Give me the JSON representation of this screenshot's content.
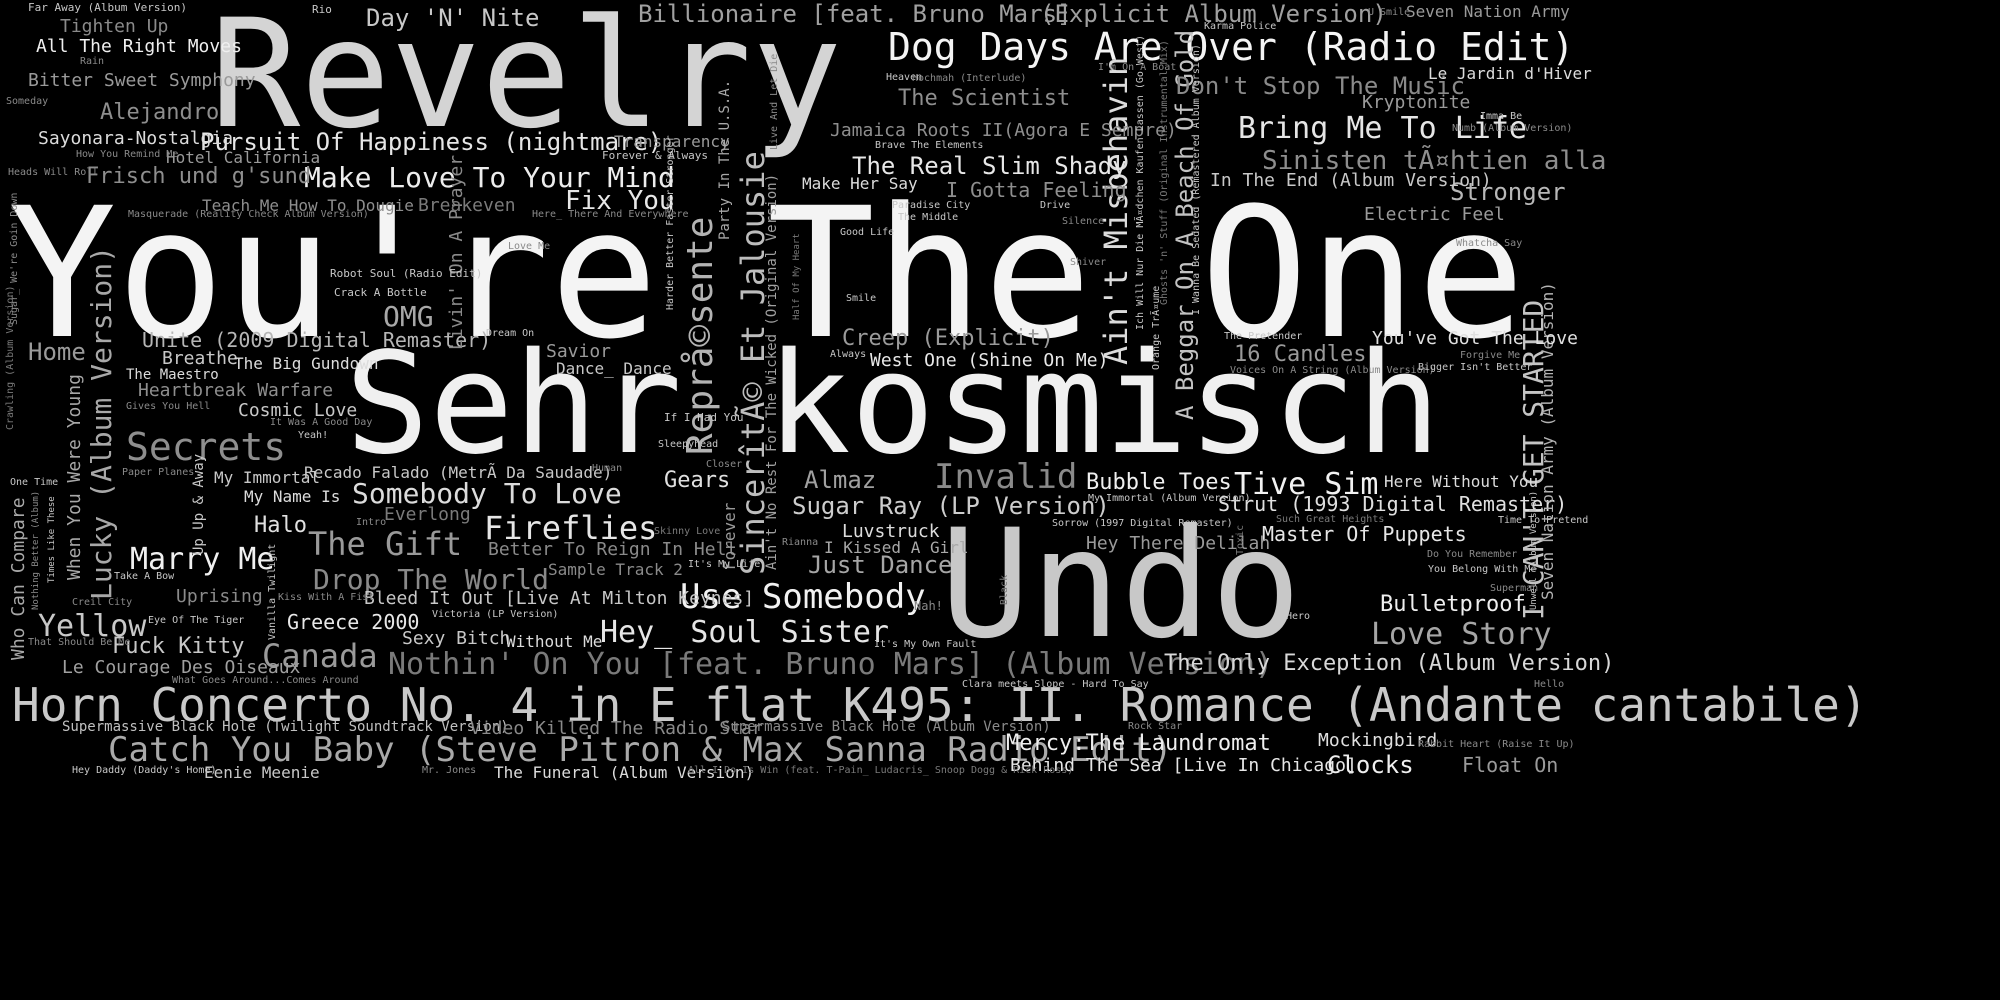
{
  "background": "#000000",
  "words": [
    {
      "text": "You're The One",
      "shade": "#f4f4f4"
    },
    {
      "text": "Sehr kosmisch",
      "shade": "#f0f0f0"
    },
    {
      "text": "Revelry",
      "shade": "#d4d4d4"
    },
    {
      "text": "Undo",
      "shade": "#c8c8c8"
    },
    {
      "text": "Horn Concerto No. 4 in E flat K495: II. Romance (Andante cantabile)",
      "shade": "#c9c9c9"
    },
    {
      "text": "Dog Days Are Over (Radio Edit)",
      "shade": "#f4f4f4"
    },
    {
      "text": "Catch You Baby (Steve Pitron & Max Sanna Radio Edit)",
      "shade": "#a9a9a9"
    },
    {
      "text": "Reprå©sente",
      "shade": "#b3b3b3"
    },
    {
      "text": "SincerîtÃ© Et Jalousie",
      "shade": "#bdbdbd"
    },
    {
      "text": "Ain't Misbehavin",
      "shade": "#dcdcdc"
    },
    {
      "text": "Nothin' On You [feat. Bruno Mars] (Album Version)",
      "shade": "#7a7a7a"
    },
    {
      "text": "Billionaire [feat. Bruno Mars]",
      "shade": "#a0a0a0"
    },
    {
      "text": "(Explicit Album Version)",
      "shade": "#a0a0a0"
    },
    {
      "text": "Day 'N' Nite",
      "shade": "#c8c8c8"
    },
    {
      "text": "Bring Me To Life",
      "shade": "#e6e6e6"
    },
    {
      "text": "Sinisten tÃ¤htien alla",
      "shade": "#8e8e8e"
    },
    {
      "text": "Pursuit Of Happiness (nightmare)",
      "shade": "#e6e6e6"
    },
    {
      "text": "Make Love To Your Mind",
      "shade": "#ededed"
    },
    {
      "text": "Secrets",
      "shade": "#8e8e8e"
    },
    {
      "text": "Somebody To Love",
      "shade": "#dcdcdc"
    },
    {
      "text": "Fireflies",
      "shade": "#e6e6e6"
    },
    {
      "text": "Use Somebody",
      "shade": "#f2f2f2"
    },
    {
      "text": "Hey_ Soul Sister",
      "shade": "#e6e6e6"
    },
    {
      "text": "Canada",
      "shade": "#9a9a9a"
    },
    {
      "text": "The Gift",
      "shade": "#9a9a9a"
    },
    {
      "text": "Invalid",
      "shade": "#8a8a8a"
    },
    {
      "text": "Tive Sim",
      "shade": "#f2f2f2"
    },
    {
      "text": "Lucky (Album Version)",
      "shade": "#a8a8a8"
    },
    {
      "text": "A Beggar On A Beach Of Gold",
      "shade": "#c2c2c2"
    },
    {
      "text": "I CAN'T GET STARTED",
      "shade": "#c4c4c4"
    },
    {
      "text": "Marry Me",
      "shade": "#f0f0f0"
    },
    {
      "text": "Drop The World",
      "shade": "#8a8a8a"
    },
    {
      "text": "The Only Exception (Album Version)",
      "shade": "#d8d8d8"
    },
    {
      "text": "Love Story",
      "shade": "#a6a6a6"
    },
    {
      "text": "The Real Slim Shady",
      "shade": "#e8e8e8"
    },
    {
      "text": "Don't Stop The Music",
      "shade": "#8a8a8a"
    },
    {
      "text": "The Scientist",
      "shade": "#8e8e8e"
    },
    {
      "text": "Sugar Ray (LP Version)",
      "shade": "#cdcdcd"
    },
    {
      "text": "Just Dance",
      "shade": "#a6a6a6"
    },
    {
      "text": "Home",
      "shade": "#9a9a9a"
    },
    {
      "text": "Yellow",
      "shade": "#c8c8c8"
    },
    {
      "text": "Fix You",
      "shade": "#e8e8e8"
    },
    {
      "text": "OMG",
      "shade": "#a8a8a8"
    },
    {
      "text": "Gears",
      "shade": "#e0e0e0"
    },
    {
      "text": "Almaz",
      "shade": "#a0a0a0"
    },
    {
      "text": "Bubble Toes",
      "shade": "#f0f0f0"
    },
    {
      "text": "Stronger",
      "shade": "#b8b8b8"
    },
    {
      "text": "Bulletproof",
      "shade": "#efefef"
    },
    {
      "text": "16 Candles",
      "shade": "#9a9a9a"
    },
    {
      "text": "Mercy:The Laundromat",
      "shade": "#efefef"
    },
    {
      "text": "Clocks",
      "shade": "#efefef"
    },
    {
      "text": "Float On",
      "shade": "#9a9a9a"
    },
    {
      "text": "Master Of Puppets",
      "shade": "#e6e6e6"
    },
    {
      "text": "Creep (Explicit)",
      "shade": "#9a9a9a"
    },
    {
      "text": "I Gotta Feeling",
      "shade": "#8e8e8e"
    },
    {
      "text": "Frisch und g'sund",
      "shade": "#8e8e8e"
    },
    {
      "text": "Unite (2009 Digital Remaster)",
      "shade": "#b6b6b6"
    },
    {
      "text": "Strut (1993 Digital Remaster)",
      "shade": "#e0e0e0"
    },
    {
      "text": "Halo",
      "shade": "#e0e0e0"
    },
    {
      "text": "Greece 2000",
      "shade": "#e8e8e8"
    },
    {
      "text": "Fuck Kitty",
      "shade": "#c8c8c8"
    },
    {
      "text": "Seven Nation Army (Album Version)",
      "shade": "#b3b3b3"
    },
    {
      "text": "You've Got The Love",
      "shade": "#e0e0e0"
    },
    {
      "text": "When You Were Young",
      "shade": "#a8a8a8"
    },
    {
      "text": "Who Can Compare",
      "shade": "#a8a8a8"
    },
    {
      "text": "In The End (Album Version)",
      "shade": "#c8c8c8"
    },
    {
      "text": "West One (Shine On Me)",
      "shade": "#e8e8e8"
    },
    {
      "text": "Uprising",
      "shade": "#8a8a8a"
    },
    {
      "text": "Heartbreak Warfare",
      "shade": "#8e8e8e"
    },
    {
      "text": "Cosmic Love",
      "shade": "#c8c8c8"
    },
    {
      "text": "Alejandro",
      "shade": "#8e8e8e"
    },
    {
      "text": "Bitter Sweet Symphony",
      "shade": "#9a9a9a"
    },
    {
      "text": "All The Right Moves",
      "shade": "#efefef"
    },
    {
      "text": "Tighten Up",
      "shade": "#8a8a8a"
    },
    {
      "text": "Sayonara-Nostalgia",
      "shade": "#dcdcdc"
    },
    {
      "text": "Jamaica Roots II(Agora E Sempre)",
      "shade": "#8e8e8e"
    },
    {
      "text": "Livin' On A Prayer",
      "shade": "#8a8a8a"
    },
    {
      "text": "Electric Feel",
      "shade": "#9a9a9a"
    },
    {
      "text": "Kryptonite",
      "shade": "#9a9a9a"
    },
    {
      "text": "Le Jardin d'Hiver",
      "shade": "#dcdcdc"
    },
    {
      "text": "Seven Nation Army",
      "shade": "#9a9a9a"
    },
    {
      "text": "Le Courage Des Oiseaux",
      "shade": "#a0a0a0"
    },
    {
      "text": "Supermassive Black Hole (Twilight Soundtrack Version)",
      "shade": "#c0c0c0"
    },
    {
      "text": "Video Killed The Radio Star",
      "shade": "#8a8a8a"
    },
    {
      "text": "Supermassive Black Hole (Album Version)",
      "shade": "#8a8a8a"
    },
    {
      "text": "Behind The Sea [Live In Chicago]",
      "shade": "#e6e6e6"
    },
    {
      "text": "Mockingbird",
      "shade": "#e0e0e0"
    },
    {
      "text": "Bleed It Out [Live At Milton Keynes]",
      "shade": "#c8c8c8"
    },
    {
      "text": "Sexy Bitch",
      "shade": "#c8c8c8"
    },
    {
      "text": "Without Me",
      "shade": "#dcdcdc"
    },
    {
      "text": "Breathe",
      "shade": "#c8c8c8"
    },
    {
      "text": "The Maestro",
      "shade": "#dcdcdc"
    },
    {
      "text": "The Big Gundown",
      "shade": "#dcdcdc"
    },
    {
      "text": "Savior",
      "shade": "#9a9a9a"
    },
    {
      "text": "Dance_ Dance",
      "shade": "#c8c8c8"
    },
    {
      "text": "Better To Reign In Hell",
      "shade": "#8a8a8a"
    },
    {
      "text": "Sample Track 2",
      "shade": "#8a8a8a"
    },
    {
      "text": "Everlong",
      "shade": "#7a7a7a"
    },
    {
      "text": "Breakeven",
      "shade": "#7a7a7a"
    },
    {
      "text": "Hotel California",
      "shade": "#9a9a9a"
    },
    {
      "text": "Transparency",
      "shade": "#9a9a9a"
    },
    {
      "text": "Recado Falado (MetrÃ Da Saudade)",
      "shade": "#c8c8c8"
    },
    {
      "text": "Luvstruck",
      "shade": "#dcdcdc"
    },
    {
      "text": "I Kissed A Girl",
      "shade": "#a8a8a8"
    },
    {
      "text": "Hey There Delilah",
      "shade": "#9a9a9a"
    },
    {
      "text": "Here Without You",
      "shade": "#dcdcdc"
    },
    {
      "text": "Eenie Meenie",
      "shade": "#c8c8c8"
    },
    {
      "text": "The Funeral (Album Version)",
      "shade": "#dcdcdc"
    },
    {
      "text": "Teach Me How To Dougie",
      "shade": "#8e8e8e"
    },
    {
      "text": "My Immortal",
      "shade": "#c8c8c8"
    },
    {
      "text": "My Name Is",
      "shade": "#dcdcdc"
    },
    {
      "text": "Party In The U.S.A.",
      "shade": "#a8a8a8"
    },
    {
      "text": "Up Up & Away",
      "shade": "#c8c8c8"
    },
    {
      "text": "Forever",
      "shade": "#9a9a9a"
    },
    {
      "text": "Ain't No Rest For The Wicked (Original Version)",
      "shade": "#a0a0a0"
    },
    {
      "text": "Make Her Say",
      "shade": "#dcdcdc"
    },
    {
      "text": "Heaven",
      "shade": "#c8c8c8"
    },
    {
      "text": "Forever & Always",
      "shade": "#c8c8c8"
    },
    {
      "text": "Far Away (Album Version)",
      "shade": "#c8c8c8"
    },
    {
      "text": "Rio",
      "shade": "#c8c8c8"
    },
    {
      "text": "Rain",
      "shade": "#8a8a8a"
    },
    {
      "text": "Someday",
      "shade": "#8a8a8a"
    },
    {
      "text": "How You Remind Me",
      "shade": "#8a8a8a"
    },
    {
      "text": "Heads Will Roll",
      "shade": "#8a8a8a"
    },
    {
      "text": "Masquerade (Reality Check Album Version)",
      "shade": "#8a8a8a"
    },
    {
      "text": "Robot Soul (Radio Edit)",
      "shade": "#c8c8c8"
    },
    {
      "text": "Crack A Bottle",
      "shade": "#c8c8c8"
    },
    {
      "text": "Dream On",
      "shade": "#c8c8c8"
    },
    {
      "text": "If I Had You",
      "shade": "#c8c8c8"
    },
    {
      "text": "Sleepyhead",
      "shade": "#c8c8c8"
    },
    {
      "text": "Human",
      "shade": "#8a8a8a"
    },
    {
      "text": "Closer",
      "shade": "#8a8a8a"
    },
    {
      "text": "Skinny Love",
      "shade": "#7a7a7a"
    },
    {
      "text": "It's My Life",
      "shade": "#c8c8c8"
    },
    {
      "text": "Rianna",
      "shade": "#8a8a8a"
    },
    {
      "text": "Intro",
      "shade": "#8a8a8a"
    },
    {
      "text": "Paper Planes",
      "shade": "#8a8a8a"
    },
    {
      "text": "It Was A Good Day",
      "shade": "#8a8a8a"
    },
    {
      "text": "Yeah!",
      "shade": "#c8c8c8"
    },
    {
      "text": "Gives You Hell",
      "shade": "#8a8a8a"
    },
    {
      "text": "One Time",
      "shade": "#c8c8c8"
    },
    {
      "text": "Crawling (Album Version)",
      "shade": "#7a7a7a"
    },
    {
      "text": "Sugar_ We're Goin Down",
      "shade": "#8a8a8a"
    },
    {
      "text": "Take A Bow",
      "shade": "#c8c8c8"
    },
    {
      "text": "Creil City",
      "shade": "#8a8a8a"
    },
    {
      "text": "Eye Of The Tiger",
      "shade": "#c8c8c8"
    },
    {
      "text": "That Should Be Me",
      "shade": "#8a8a8a"
    },
    {
      "text": "What Goes Around...Comes Around",
      "shade": "#8a8a8a"
    },
    {
      "text": "Hey Daddy (Daddy's Home)",
      "shade": "#c8c8c8"
    },
    {
      "text": "Mr. Jones",
      "shade": "#8a8a8a"
    },
    {
      "text": "All I Do Is Win (feat. T-Pain_ Ludacris_ Snoop Dogg & Rick Ross)",
      "shade": "#7a7a7a"
    },
    {
      "text": "Kiss With A Fist",
      "shade": "#8a8a8a"
    },
    {
      "text": "Victoria (LP Version)",
      "shade": "#c8c8c8"
    },
    {
      "text": "Vanilla Twilight",
      "shade": "#c8c8c8"
    },
    {
      "text": "Times Like These",
      "shade": "#c8c8c8"
    },
    {
      "text": "Nothing Better (Album)",
      "shade": "#8a8a8a"
    },
    {
      "text": "Nah!",
      "shade": "#8a8a8a"
    },
    {
      "text": "It's My Own Fault",
      "shade": "#c8c8c8"
    },
    {
      "text": "Clara meets Slope - Hard To Say",
      "shade": "#c8c8c8"
    },
    {
      "text": "Rock Star",
      "shade": "#8a8a8a"
    },
    {
      "text": "Rabbit Heart (Raise It Up)",
      "shade": "#8a8a8a"
    },
    {
      "text": "Hello",
      "shade": "#8a8a8a"
    },
    {
      "text": "Hero",
      "shade": "#c8c8c8"
    },
    {
      "text": "Superman",
      "shade": "#8a8a8a"
    },
    {
      "text": "Unwell (Album Version)",
      "shade": "#c8c8c8"
    },
    {
      "text": "You Belong With Me",
      "shade": "#c8c8c8"
    },
    {
      "text": "Do You Remember",
      "shade": "#8a8a8a"
    },
    {
      "text": "Time To Pretend",
      "shade": "#c8c8c8"
    },
    {
      "text": "Such Great Heights",
      "shade": "#7a7a7a"
    },
    {
      "text": "Sorrow (1997 Digital Remaster)",
      "shade": "#c8c8c8"
    },
    {
      "text": "My Immortal (Album Version)",
      "shade": "#c8c8c8"
    },
    {
      "text": "Toxic",
      "shade": "#7a7a7a"
    },
    {
      "text": "Black",
      "shade": "#7a7a7a"
    },
    {
      "text": "Voices On A String (Album Version)",
      "shade": "#8a8a8a"
    },
    {
      "text": "Bigger Isn't Better",
      "shade": "#c8c8c8"
    },
    {
      "text": "Forgive Me",
      "shade": "#8a8a8a"
    },
    {
      "text": "The Pretender",
      "shade": "#c8c8c8"
    },
    {
      "text": "Always",
      "shade": "#c8c8c8"
    },
    {
      "text": "Smile",
      "shade": "#c8c8c8"
    },
    {
      "text": "Shiver",
      "shade": "#8a8a8a"
    },
    {
      "text": "Silence",
      "shade": "#8a8a8a"
    },
    {
      "text": "Good Life",
      "shade": "#c8c8c8"
    },
    {
      "text": "Half Of My Heart",
      "shade": "#7a7a7a"
    },
    {
      "text": "The Middle",
      "shade": "#c8c8c8"
    },
    {
      "text": "Paradise City",
      "shade": "#c8c8c8"
    },
    {
      "text": "Drive",
      "shade": "#c8c8c8"
    },
    {
      "text": "Brave The Elements",
      "shade": "#c8c8c8"
    },
    {
      "text": "Hochmah (Interlude)",
      "shade": "#8a8a8a"
    },
    {
      "text": "I'm On A Boat",
      "shade": "#8a8a8a"
    },
    {
      "text": "Karma Police",
      "shade": "#c8c8c8"
    },
    {
      "text": "U Smile",
      "shade": "#8a8a8a"
    },
    {
      "text": "Numb (Album Version)",
      "shade": "#8a8a8a"
    },
    {
      "text": "Imma Be",
      "shade": "#c8c8c8"
    },
    {
      "text": "Whatcha Say",
      "shade": "#8a8a8a"
    },
    {
      "text": "Harder Better Faster Stronger",
      "shade": "#c8c8c8"
    },
    {
      "text": "Here_ There And Everywhere",
      "shade": "#8a8a8a"
    },
    {
      "text": "Love Me",
      "shade": "#8a8a8a"
    },
    {
      "text": "Live And Let Die",
      "shade": "#8a8a8a"
    },
    {
      "text": "Orange TrÃ¤ume",
      "shade": "#c8c8c8"
    },
    {
      "text": "Ghosts 'n' Stuff (Original Instrumental Mix)",
      "shade": "#7a7a7a"
    },
    {
      "text": "Ich Will Nur Die MÃ¤dchen Kaufen Lassen (Go West)",
      "shade": "#c8c8c8"
    },
    {
      "text": "I Wanna Be Sedated (Remastered Album Version)",
      "shade": "#c8c8c8"
    }
  ]
}
